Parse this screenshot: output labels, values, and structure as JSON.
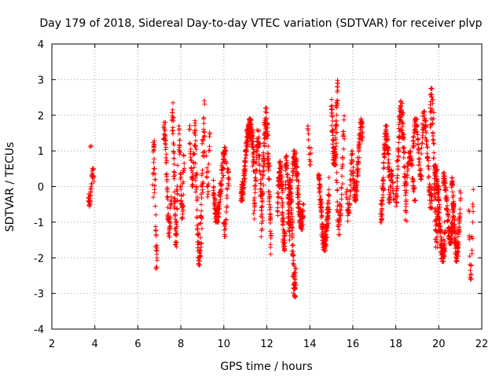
{
  "chart_data": {
    "type": "scatter",
    "title": "Day 179 of 2018, Sidereal Day-to-day VTEC variation (SDTVAR) for receiver plvp",
    "xlabel": "GPS time / hours",
    "ylabel": "SDTVAR / TECUs",
    "xlim": [
      2,
      22
    ],
    "ylim": [
      -4,
      4
    ],
    "xticks": [
      2,
      4,
      6,
      8,
      10,
      12,
      14,
      16,
      18,
      20,
      22
    ],
    "yticks": [
      -4,
      -3,
      -2,
      -1,
      0,
      1,
      2,
      3,
      4
    ],
    "xtick_labels": [
      "2",
      "4",
      "6",
      "8",
      "10",
      "12",
      "14",
      "16",
      "18",
      "20",
      "22"
    ],
    "ytick_labels": [
      "-4",
      "-3",
      "-2",
      "-1",
      "0",
      "1",
      "2",
      "3",
      "4"
    ],
    "grid": true,
    "marker": "+",
    "color": "#ff0000",
    "series": [
      {
        "name": "SDTVAR",
        "clusters": [
          {
            "x_start": 3.7,
            "x_end": 3.95,
            "y_lo": -0.6,
            "y_hi": 0.5,
            "n": 40
          },
          {
            "x_start": 3.78,
            "x_end": 3.82,
            "y_lo": 1.1,
            "y_hi": 1.15,
            "n": 2
          },
          {
            "x_start": 6.7,
            "x_end": 6.9,
            "y_lo": -2.3,
            "y_hi": 1.3,
            "n": 45
          },
          {
            "x_start": 7.2,
            "x_end": 7.55,
            "y_lo": -1.5,
            "y_hi": 1.8,
            "n": 70
          },
          {
            "x_start": 7.6,
            "x_end": 7.85,
            "y_lo": -1.8,
            "y_hi": 2.35,
            "n": 70
          },
          {
            "x_start": 7.9,
            "x_end": 8.15,
            "y_lo": -0.9,
            "y_hi": 1.7,
            "n": 50
          },
          {
            "x_start": 8.4,
            "x_end": 8.65,
            "y_lo": 0.0,
            "y_hi": 2.0,
            "n": 35
          },
          {
            "x_start": 8.65,
            "x_end": 9.1,
            "y_lo": -2.2,
            "y_hi": 2.55,
            "n": 110
          },
          {
            "x_start": 9.2,
            "x_end": 9.35,
            "y_lo": -0.3,
            "y_hi": 1.6,
            "n": 20
          },
          {
            "x_start": 9.5,
            "x_end": 10.1,
            "y_lo": -1.0,
            "y_hi": 1.1,
            "n": 120
          },
          {
            "x_start": 10.0,
            "x_end": 10.25,
            "y_lo": -1.4,
            "y_hi": 0.5,
            "n": 30
          },
          {
            "x_start": 10.8,
            "x_end": 11.4,
            "y_lo": -0.4,
            "y_hi": 1.9,
            "n": 180
          },
          {
            "x_start": 11.4,
            "x_end": 11.75,
            "y_lo": -1.1,
            "y_hi": 1.6,
            "n": 70
          },
          {
            "x_start": 11.75,
            "x_end": 12.2,
            "y_lo": -1.9,
            "y_hi": 2.2,
            "n": 130
          },
          {
            "x_start": 12.5,
            "x_end": 12.85,
            "y_lo": -1.8,
            "y_hi": 0.7,
            "n": 110
          },
          {
            "x_start": 12.85,
            "x_end": 13.1,
            "y_lo": -1.5,
            "y_hi": 0.9,
            "n": 50
          },
          {
            "x_start": 13.0,
            "x_end": 13.35,
            "y_lo": -3.1,
            "y_hi": 0.2,
            "n": 120
          },
          {
            "x_start": 13.2,
            "x_end": 13.7,
            "y_lo": -1.2,
            "y_hi": 1.0,
            "n": 130
          },
          {
            "x_start": 13.9,
            "x_end": 14.05,
            "y_lo": 0.6,
            "y_hi": 1.7,
            "n": 15
          },
          {
            "x_start": 14.4,
            "x_end": 14.9,
            "y_lo": -1.8,
            "y_hi": 0.5,
            "n": 150
          },
          {
            "x_start": 15.0,
            "x_end": 15.3,
            "y_lo": 0.6,
            "y_hi": 3.05,
            "n": 80
          },
          {
            "x_start": 15.2,
            "x_end": 15.6,
            "y_lo": -1.35,
            "y_hi": 2.0,
            "n": 60
          },
          {
            "x_start": 15.7,
            "x_end": 16.0,
            "y_lo": -1.0,
            "y_hi": 1.0,
            "n": 40
          },
          {
            "x_start": 16.0,
            "x_end": 16.45,
            "y_lo": -0.4,
            "y_hi": 1.9,
            "n": 100
          },
          {
            "x_start": 17.3,
            "x_end": 17.7,
            "y_lo": -1.0,
            "y_hi": 1.7,
            "n": 110
          },
          {
            "x_start": 17.7,
            "x_end": 17.9,
            "y_lo": -0.6,
            "y_hi": 0.5,
            "n": 30
          },
          {
            "x_start": 18.0,
            "x_end": 18.5,
            "y_lo": -1.3,
            "y_hi": 2.4,
            "n": 120
          },
          {
            "x_start": 18.5,
            "x_end": 18.9,
            "y_lo": -0.4,
            "y_hi": 1.0,
            "n": 50
          },
          {
            "x_start": 18.8,
            "x_end": 19.2,
            "y_lo": 0.2,
            "y_hi": 1.9,
            "n": 60
          },
          {
            "x_start": 19.2,
            "x_end": 19.7,
            "y_lo": -0.6,
            "y_hi": 2.1,
            "n": 80
          },
          {
            "x_start": 19.6,
            "x_end": 20.0,
            "y_lo": -1.7,
            "y_hi": 2.75,
            "n": 90
          },
          {
            "x_start": 19.8,
            "x_end": 20.3,
            "y_lo": -2.1,
            "y_hi": 0.6,
            "n": 130
          },
          {
            "x_start": 20.2,
            "x_end": 20.7,
            "y_lo": -1.6,
            "y_hi": 0.4,
            "n": 110
          },
          {
            "x_start": 20.6,
            "x_end": 21.0,
            "y_lo": -2.1,
            "y_hi": 0.3,
            "n": 120
          },
          {
            "x_start": 21.4,
            "x_end": 21.6,
            "y_lo": -2.95,
            "y_hi": 0.0,
            "n": 25
          }
        ]
      }
    ]
  }
}
